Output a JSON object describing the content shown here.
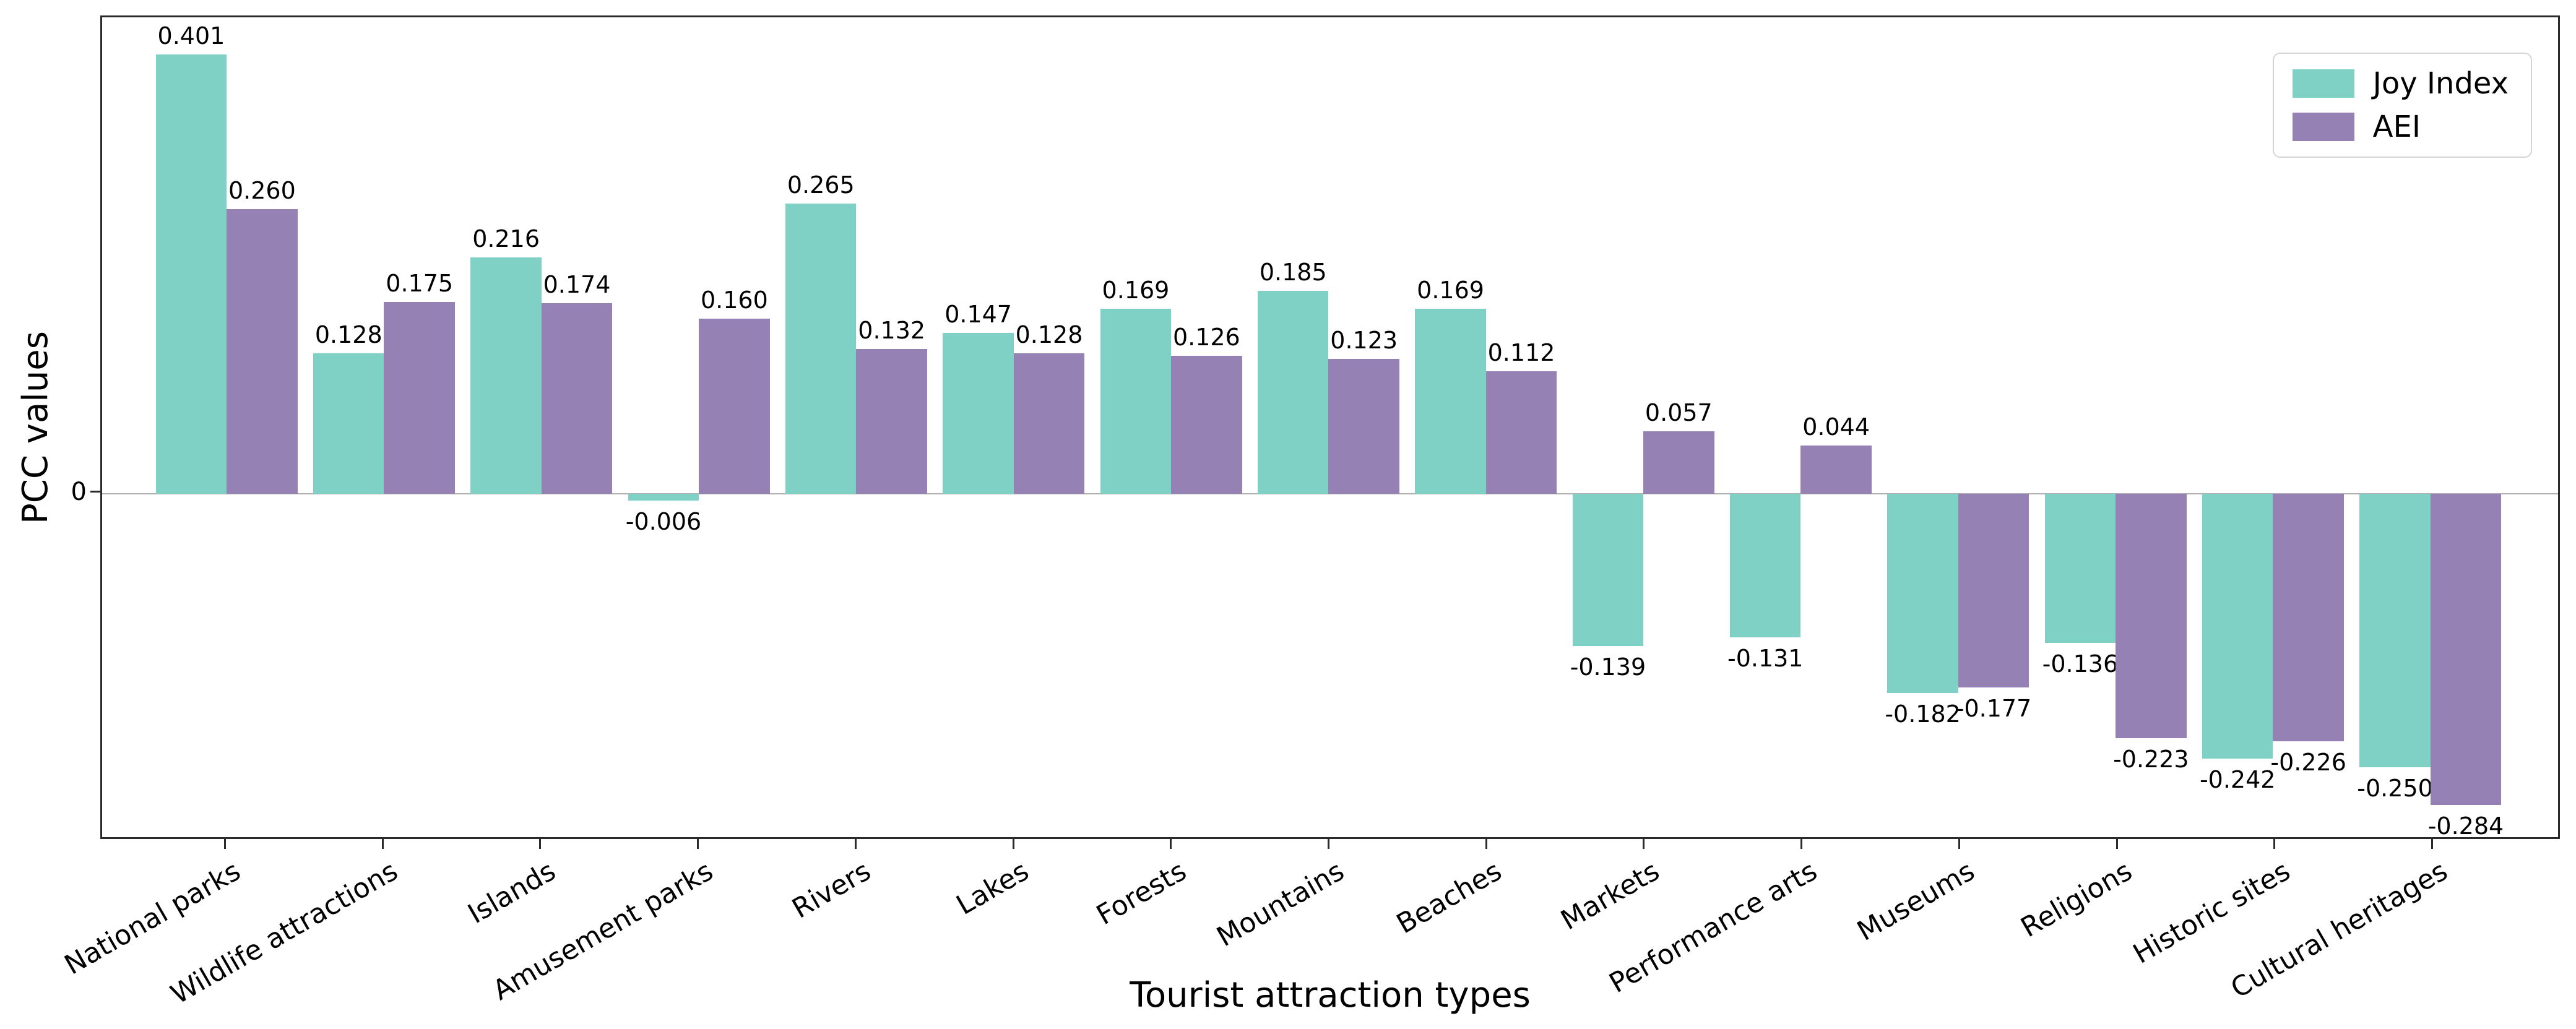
{
  "chart_data": {
    "type": "bar",
    "title": "",
    "xlabel": "Tourist attraction types",
    "ylabel": "PCC values",
    "categories": [
      "National parks",
      "Wildlife attractions",
      "Islands",
      "Amusement parks",
      "Rivers",
      "Lakes",
      "Forests",
      "Mountains",
      "Beaches",
      "Markets",
      "Performance arts",
      "Museums",
      "Religions",
      "Historic sites",
      "Cultural heritages"
    ],
    "series": [
      {
        "name": "Joy Index",
        "color": "#80d1c5",
        "values": [
          0.401,
          0.128,
          0.216,
          -0.006,
          0.265,
          0.147,
          0.169,
          0.185,
          0.169,
          -0.139,
          -0.131,
          -0.182,
          -0.136,
          -0.242,
          -0.25
        ]
      },
      {
        "name": "AEI",
        "color": "#9681b4",
        "values": [
          0.26,
          0.175,
          0.174,
          0.16,
          0.132,
          0.128,
          0.126,
          0.123,
          0.112,
          0.057,
          0.044,
          -0.177,
          -0.223,
          -0.226,
          -0.284
        ]
      }
    ],
    "value_label_decimals": 3,
    "ylim": [
      -0.317,
      0.435
    ],
    "yticks": [
      "0"
    ],
    "grid": false,
    "legend_position": "upper right",
    "colors": {
      "spine": "#2b2b2b",
      "zero_line": "#b0b0b0",
      "text": "#000000",
      "legend_border": "#d5d5d5"
    }
  }
}
